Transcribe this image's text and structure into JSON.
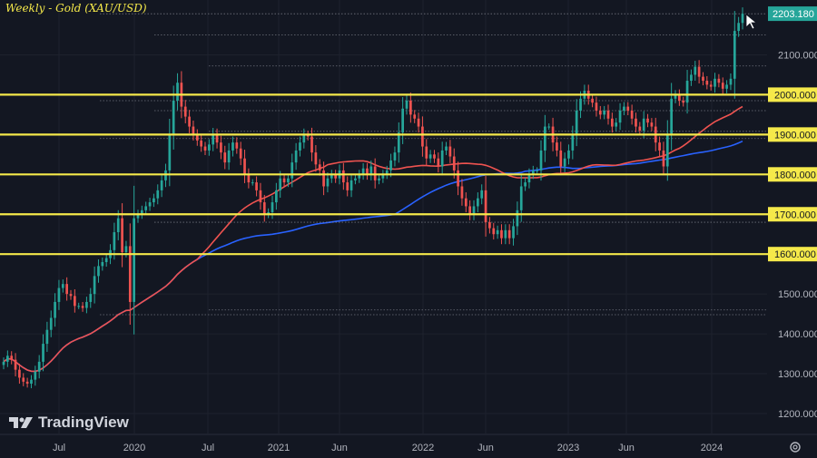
{
  "title": "Weekly - Gold (XAU/USD)",
  "brand": "TradingView",
  "icons": {
    "logo": "tradingview-logo-icon",
    "settings": "gear-icon",
    "cursor": "arrow-cursor-icon"
  },
  "colors": {
    "background": "#131722",
    "grid": "#1e222d",
    "up": "#26a69a",
    "down": "#ef5350",
    "level": "#f5e94a",
    "ma_fast": "#ef5350",
    "ma_slow": "#2962ff",
    "text": "#b2b5be"
  },
  "chart_data": {
    "type": "candlestick",
    "title": "Weekly - Gold (XAU/USD)",
    "xlabel": "",
    "ylabel": "",
    "ylim": [
      1150,
      2250
    ],
    "grid": true,
    "x_ticks": [
      "Jul",
      "2020",
      "Jul",
      "2021",
      "Jun",
      "2022",
      "Jun",
      "2023",
      "Jun",
      "2024"
    ],
    "y_ticks": [
      "1200.000",
      "1300.000",
      "1400.000",
      "1500.000",
      "1600.000",
      "1700.000",
      "1800.000",
      "1900.000",
      "2000.000",
      "2100.000"
    ],
    "current_price": "2203.180",
    "horizontal_levels": [
      {
        "value": 2000,
        "label": "2000.000"
      },
      {
        "value": 1900,
        "label": "1900.000"
      },
      {
        "value": 1800,
        "label": "1800.000"
      },
      {
        "value": 1700,
        "label": "1700.000"
      },
      {
        "value": 1600,
        "label": "1600.000"
      }
    ],
    "dotted_levels": [
      2203,
      2150,
      2072,
      1985,
      1960,
      1908,
      1890,
      1680,
      1460,
      1448
    ],
    "close_series": [
      1330,
      1345,
      1335,
      1310,
      1290,
      1280,
      1275,
      1285,
      1305,
      1330,
      1375,
      1410,
      1440,
      1480,
      1515,
      1525,
      1500,
      1495,
      1470,
      1470,
      1465,
      1480,
      1500,
      1545,
      1570,
      1580,
      1590,
      1610,
      1655,
      1690,
      1605,
      1620,
      1480,
      1690,
      1700,
      1710,
      1720,
      1730,
      1740,
      1760,
      1785,
      1810,
      1900,
      1985,
      2030,
      1970,
      1945,
      1920,
      1900,
      1885,
      1870,
      1860,
      1875,
      1900,
      1880,
      1855,
      1830,
      1860,
      1880,
      1865,
      1840,
      1800,
      1780,
      1780,
      1760,
      1730,
      1700,
      1705,
      1730,
      1760,
      1790,
      1780,
      1790,
      1830,
      1860,
      1880,
      1900,
      1895,
      1855,
      1825,
      1810,
      1770,
      1790,
      1800,
      1790,
      1810,
      1780,
      1760,
      1785,
      1790,
      1800,
      1815,
      1800,
      1820,
      1785,
      1790,
      1800,
      1810,
      1835,
      1855,
      1905,
      1965,
      1985,
      1950,
      1940,
      1920,
      1870,
      1840,
      1850,
      1840,
      1820,
      1860,
      1870,
      1845,
      1810,
      1770,
      1740,
      1720,
      1700,
      1720,
      1740,
      1760,
      1680,
      1665,
      1650,
      1660,
      1640,
      1660,
      1640,
      1670,
      1710,
      1770,
      1780,
      1800,
      1810,
      1810,
      1860,
      1920,
      1920,
      1880,
      1860,
      1820,
      1840,
      1860,
      1900,
      1960,
      1990,
      2010,
      1990,
      1980,
      1960,
      1950,
      1960,
      1940,
      1920,
      1930,
      1960,
      1970,
      1960,
      1940,
      1920,
      1910,
      1940,
      1930,
      1920,
      1880,
      1860,
      1820,
      1900,
      1990,
      2000,
      1985,
      1980,
      2035,
      2050,
      2070,
      2045,
      2035,
      2025,
      2020,
      2040,
      2030,
      2015,
      2025,
      2040,
      2160,
      2180,
      2203
    ],
    "series": [
      {
        "name": "Moving average (fast)",
        "values_from": "close_series",
        "period": 50
      },
      {
        "name": "Moving average (slow)",
        "values_from": "close_series",
        "period": 100
      }
    ]
  }
}
